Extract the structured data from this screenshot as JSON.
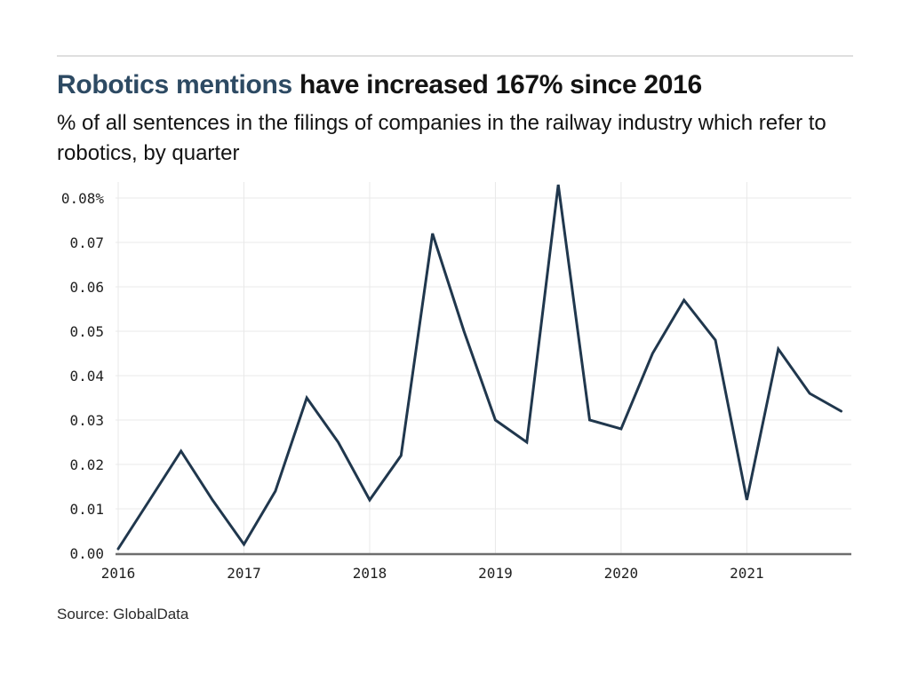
{
  "header": {
    "title_highlight": "Robotics mentions",
    "title_rest": " have increased 167% since 2016",
    "subtitle": "% of all sentences in the filings of companies in the railway industry which refer to robotics, by quarter"
  },
  "footer": {
    "source": "Source: GlobalData"
  },
  "colors": {
    "title_accent": "#2d4a63",
    "text": "#131313",
    "line": "#20374d",
    "grid": "#e9e9e9",
    "axis": "#6e6e6e",
    "rule": "#dfdfdf"
  },
  "chart_data": {
    "type": "line",
    "title": "Robotics mentions have increased 167% since 2016",
    "subtitle": "% of all sentences in the filings of companies in the railway industry which refer to robotics, by quarter",
    "x": [
      "2016 Q1",
      "2016 Q2",
      "2016 Q3",
      "2016 Q4",
      "2017 Q1",
      "2017 Q2",
      "2017 Q3",
      "2017 Q4",
      "2018 Q1",
      "2018 Q2",
      "2018 Q3",
      "2018 Q4",
      "2019 Q1",
      "2019 Q2",
      "2019 Q3",
      "2019 Q4",
      "2020 Q1",
      "2020 Q2",
      "2020 Q3",
      "2020 Q4",
      "2021 Q1",
      "2021 Q2",
      "2021 Q3",
      "2021 Q4"
    ],
    "values": [
      0.001,
      0.012,
      0.023,
      0.012,
      0.002,
      0.014,
      0.035,
      0.025,
      0.012,
      0.022,
      0.072,
      0.05,
      0.03,
      0.025,
      0.083,
      0.03,
      0.028,
      0.045,
      0.057,
      0.048,
      0.012,
      0.046,
      0.036,
      0.032
    ],
    "xlabel": "",
    "ylabel": "",
    "ylim": [
      0,
      0.085
    ],
    "grid": true,
    "legend_position": "none",
    "line_color": "#20374d",
    "y_ticks": [
      {
        "label": "0.08%",
        "value": 0.08
      },
      {
        "label": "0.07",
        "value": 0.07
      },
      {
        "label": "0.06",
        "value": 0.06
      },
      {
        "label": "0.05",
        "value": 0.05
      },
      {
        "label": "0.04",
        "value": 0.04
      },
      {
        "label": "0.03",
        "value": 0.03
      },
      {
        "label": "0.02",
        "value": 0.02
      },
      {
        "label": "0.01",
        "value": 0.01
      },
      {
        "label": "0.00",
        "value": 0.0
      }
    ],
    "x_ticks": [
      {
        "label": "2016",
        "index": 0
      },
      {
        "label": "2017",
        "index": 4
      },
      {
        "label": "2018",
        "index": 8
      },
      {
        "label": "2019",
        "index": 12
      },
      {
        "label": "2020",
        "index": 16
      },
      {
        "label": "2021",
        "index": 20
      }
    ],
    "source": "Source: GlobalData"
  }
}
